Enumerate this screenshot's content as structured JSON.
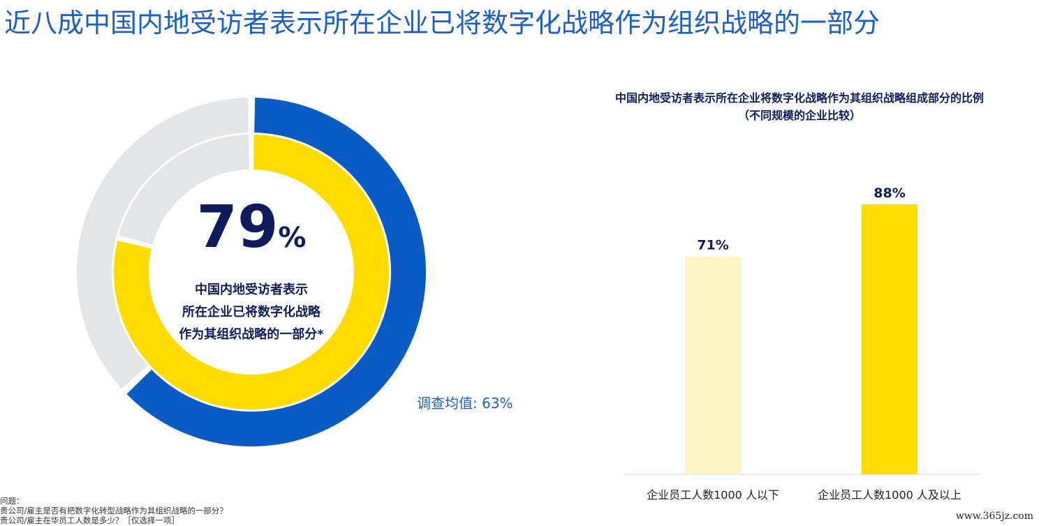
{
  "title": "近八成中国内地受访者表示所在企业已将数字化战略作为组织战略的一部分",
  "chart_data": [
    {
      "type": "pie",
      "variant": "concentric-donut",
      "rings": [
        {
          "name": "",
          "value": 63,
          "color": "#0b5bc5",
          "remainder_color": "#e3e4e6"
        },
        {
          "name": "",
          "value": 79,
          "color": "#ffdc00",
          "remainder_color": "#e3e4e6"
        }
      ],
      "center_value": "79",
      "center_unit": "%",
      "center_caption": [
        "中国内地受访者表示",
        "所在企业已将数字化战略",
        "作为其组织战略的一部分*"
      ],
      "annotation": "调查均值: 63%"
    },
    {
      "type": "bar",
      "title_lines": [
        "中国内地受访者表示所在企业将数字化战略作为其组织战略组成部分的比例",
        "（不同规模的企业比较）"
      ],
      "categories": [
        "企业员工人数1000 人以下",
        "企业员工人数1000 人及以上"
      ],
      "values": [
        71,
        88
      ],
      "data_labels": [
        "71%",
        "88%"
      ],
      "colors": [
        "#fdf5c4",
        "#ffdc00"
      ],
      "ylim": [
        0,
        100
      ],
      "grid": false
    }
  ],
  "footnote": [
    "问题：",
    "贵公司/雇主是否有把数字化转型战略作为其组织战略的一部分？",
    "贵公司/雇主在华员工人数是多少？［仅选择一项］"
  ],
  "watermark": "www.365jz.com"
}
